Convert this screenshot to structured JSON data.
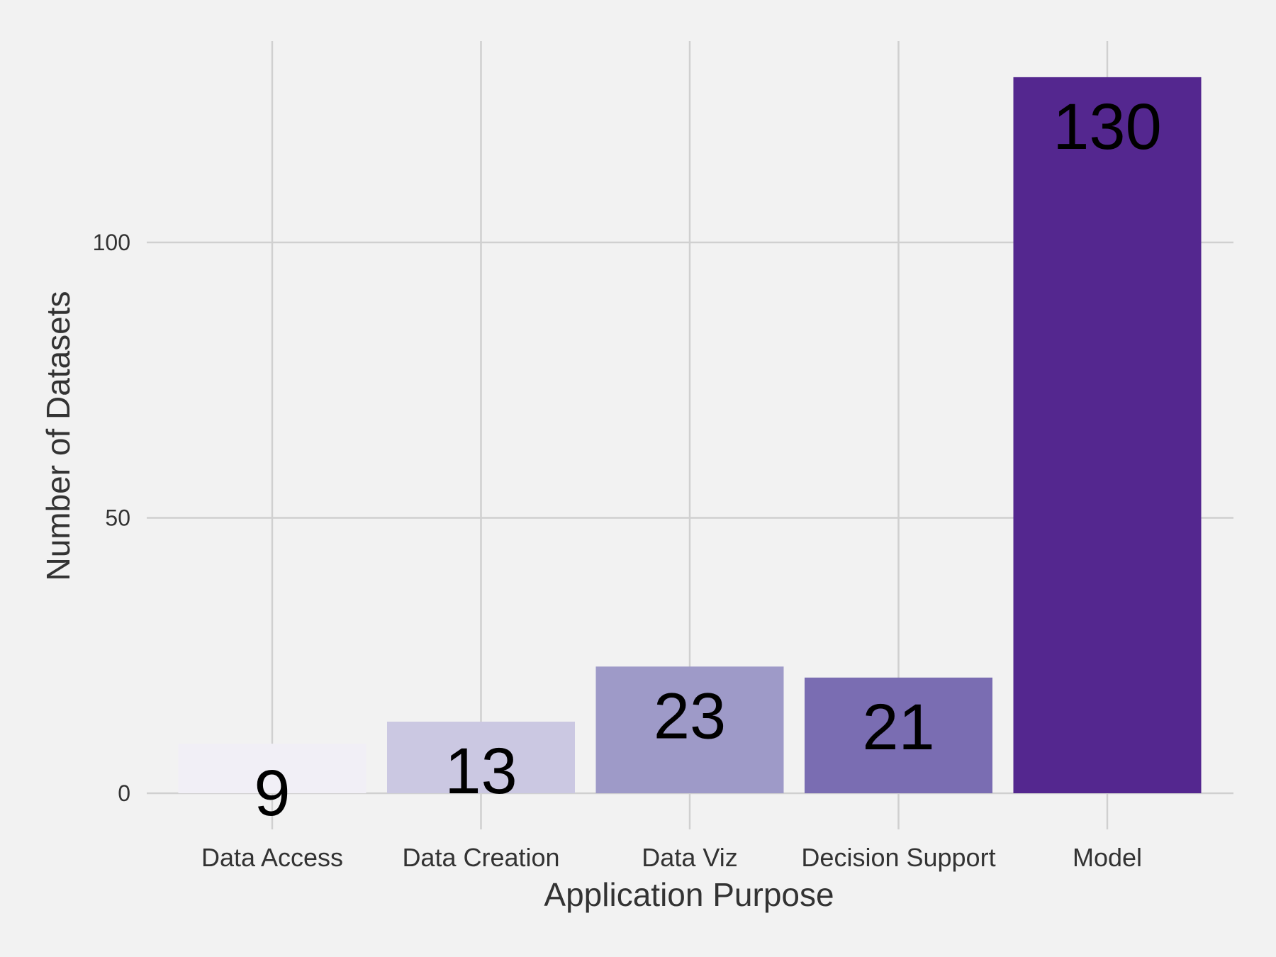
{
  "chart_data": {
    "type": "bar",
    "title": "",
    "xlabel": "Application Purpose",
    "ylabel": "Number of Datasets",
    "categories": [
      "Data Access",
      "Data Creation",
      "Data Viz",
      "Decision Support",
      "Model"
    ],
    "values": [
      9,
      13,
      23,
      21,
      130
    ],
    "data_labels": [
      "9",
      "13",
      "23",
      "21",
      "130"
    ],
    "colors": [
      "#f1eff6",
      "#cbc8e2",
      "#9e9ac8",
      "#7a6db2",
      "#54278f"
    ],
    "yticks": [
      0,
      50,
      100
    ],
    "ylim": [
      -6,
      137
    ],
    "grid": true,
    "legend": "none"
  }
}
